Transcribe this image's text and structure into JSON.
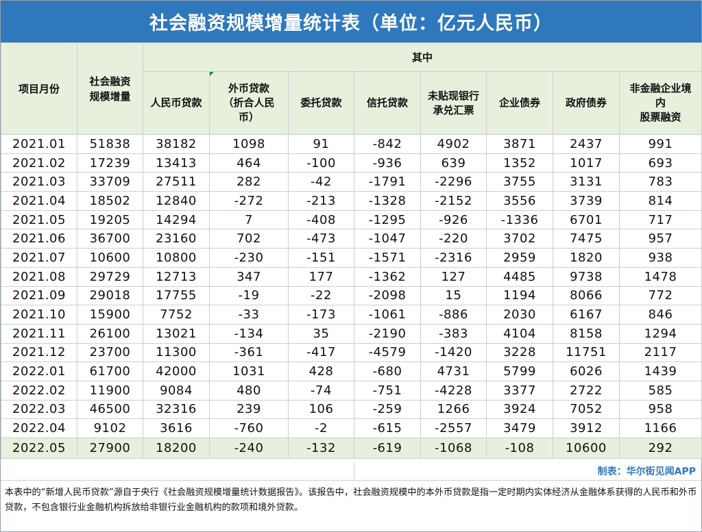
{
  "title": "社会融资规模增量统计表（单位：亿元人民币）",
  "headers": {
    "item": "项目月份",
    "total": [
      "社会融资",
      "规模增量"
    ],
    "group": "其中",
    "sub": [
      [
        "人民币贷款"
      ],
      [
        "外币贷款",
        "（折合人民",
        "币）"
      ],
      [
        "委托贷款"
      ],
      [
        "信托贷款"
      ],
      [
        "未贴现银行",
        "承兑汇票"
      ],
      [
        "企业债券"
      ],
      [
        "政府债券"
      ],
      [
        "非金融企业境",
        "内",
        "股票融资"
      ]
    ]
  },
  "rows": [
    [
      "2021.01",
      "51838",
      "38182",
      "1098",
      "91",
      "-842",
      "4902",
      "3871",
      "2437",
      "991"
    ],
    [
      "2021.02",
      "17239",
      "13413",
      "464",
      "-100",
      "-936",
      "639",
      "1352",
      "1017",
      "693"
    ],
    [
      "2021.03",
      "33709",
      "27511",
      "282",
      "-42",
      "-1791",
      "-2296",
      "3755",
      "3131",
      "783"
    ],
    [
      "2021.04",
      "18502",
      "12840",
      "-272",
      "-213",
      "-1328",
      "-2152",
      "3556",
      "3739",
      "814"
    ],
    [
      "2021.05",
      "19205",
      "14294",
      "7",
      "-408",
      "-1295",
      "-926",
      "-1336",
      "6701",
      "717"
    ],
    [
      "2021.06",
      "36700",
      "23160",
      "702",
      "-473",
      "-1047",
      "-220",
      "3702",
      "7475",
      "957"
    ],
    [
      "2021.07",
      "10600",
      "10800",
      "-230",
      "-151",
      "-1571",
      "-2316",
      "2959",
      "1820",
      "938"
    ],
    [
      "2021.08",
      "29729",
      "12713",
      "347",
      "177",
      "-1362",
      "127",
      "4485",
      "9738",
      "1478"
    ],
    [
      "2021.09",
      "29018",
      "17755",
      "-19",
      "-22",
      "-2098",
      "15",
      "1194",
      "8066",
      "772"
    ],
    [
      "2021.10",
      "15900",
      "7752",
      "-33",
      "-173",
      "-1061",
      "-886",
      "2030",
      "6167",
      "846"
    ],
    [
      "2021.11",
      "26100",
      "13021",
      "-134",
      "35",
      "-2190",
      "-383",
      "4104",
      "8158",
      "1294"
    ],
    [
      "2021.12",
      "23700",
      "11300",
      "-361",
      "-417",
      "-4579",
      "-1420",
      "3228",
      "11751",
      "2117"
    ],
    [
      "2022.01",
      "61700",
      "42000",
      "1031",
      "428",
      "-680",
      "4731",
      "5799",
      "6026",
      "1439"
    ],
    [
      "2022.02",
      "11900",
      "9084",
      "480",
      "-74",
      "-751",
      "-4228",
      "3377",
      "2722",
      "585"
    ],
    [
      "2022.03",
      "46500",
      "32316",
      "239",
      "106",
      "-259",
      "1266",
      "3924",
      "7052",
      "958"
    ],
    [
      "2022.04",
      "9102",
      "3616",
      "-760",
      "-2",
      "-615",
      "-2557",
      "3479",
      "3912",
      "1166"
    ],
    [
      "2022.05",
      "27900",
      "18200",
      "-240",
      "-132",
      "-619",
      "-1068",
      "-108",
      "10600",
      "292"
    ]
  ],
  "credit": "制表：华尔街见闻APP",
  "note": "本表中的“新增人民币贷款”源自于央行《社会融资规模增量统计数据报告》。该报告中，社会融资规模中的本外币贷款是指一定时期内实体经济从金融体系获得的人民币和外币贷款，不包含银行业金融机构拆放给非银行业金融机构的款项和境外贷款。",
  "colors": {
    "title_bg": "#2f78bd",
    "header_bg": "#e8f0dd",
    "credit": "#2f78bd"
  }
}
